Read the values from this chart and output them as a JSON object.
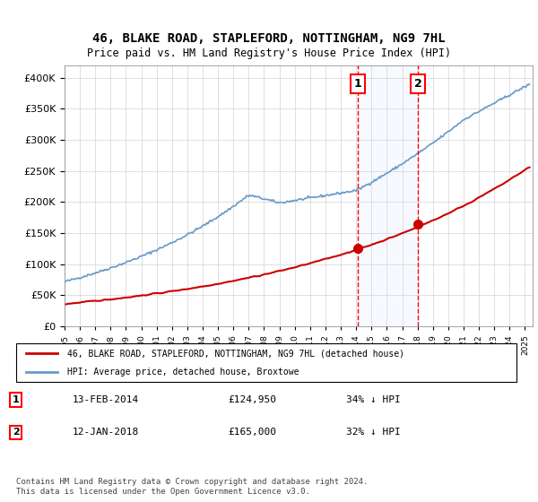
{
  "title": "46, BLAKE ROAD, STAPLEFORD, NOTTINGHAM, NG9 7HL",
  "subtitle": "Price paid vs. HM Land Registry's House Price Index (HPI)",
  "ylabel_ticks": [
    "£0",
    "£50K",
    "£100K",
    "£150K",
    "£200K",
    "£250K",
    "£300K",
    "£350K",
    "£400K"
  ],
  "ylim": [
    0,
    420000
  ],
  "xlim_start": 1995.0,
  "xlim_end": 2025.5,
  "marker1_x": 2014.11,
  "marker1_label": "1",
  "marker1_date": "13-FEB-2014",
  "marker1_price": "£124,950",
  "marker1_hpi": "34% ↓ HPI",
  "marker2_x": 2018.04,
  "marker2_label": "2",
  "marker2_date": "12-JAN-2018",
  "marker2_price": "£165,000",
  "marker2_hpi": "32% ↓ HPI",
  "hpi_color": "#6699cc",
  "price_color": "#cc0000",
  "shade_color": "#ddeeff",
  "legend_label1": "46, BLAKE ROAD, STAPLEFORD, NOTTINGHAM, NG9 7HL (detached house)",
  "legend_label2": "HPI: Average price, detached house, Broxtowe",
  "footnote": "Contains HM Land Registry data © Crown copyright and database right 2024.\nThis data is licensed under the Open Government Licence v3.0."
}
